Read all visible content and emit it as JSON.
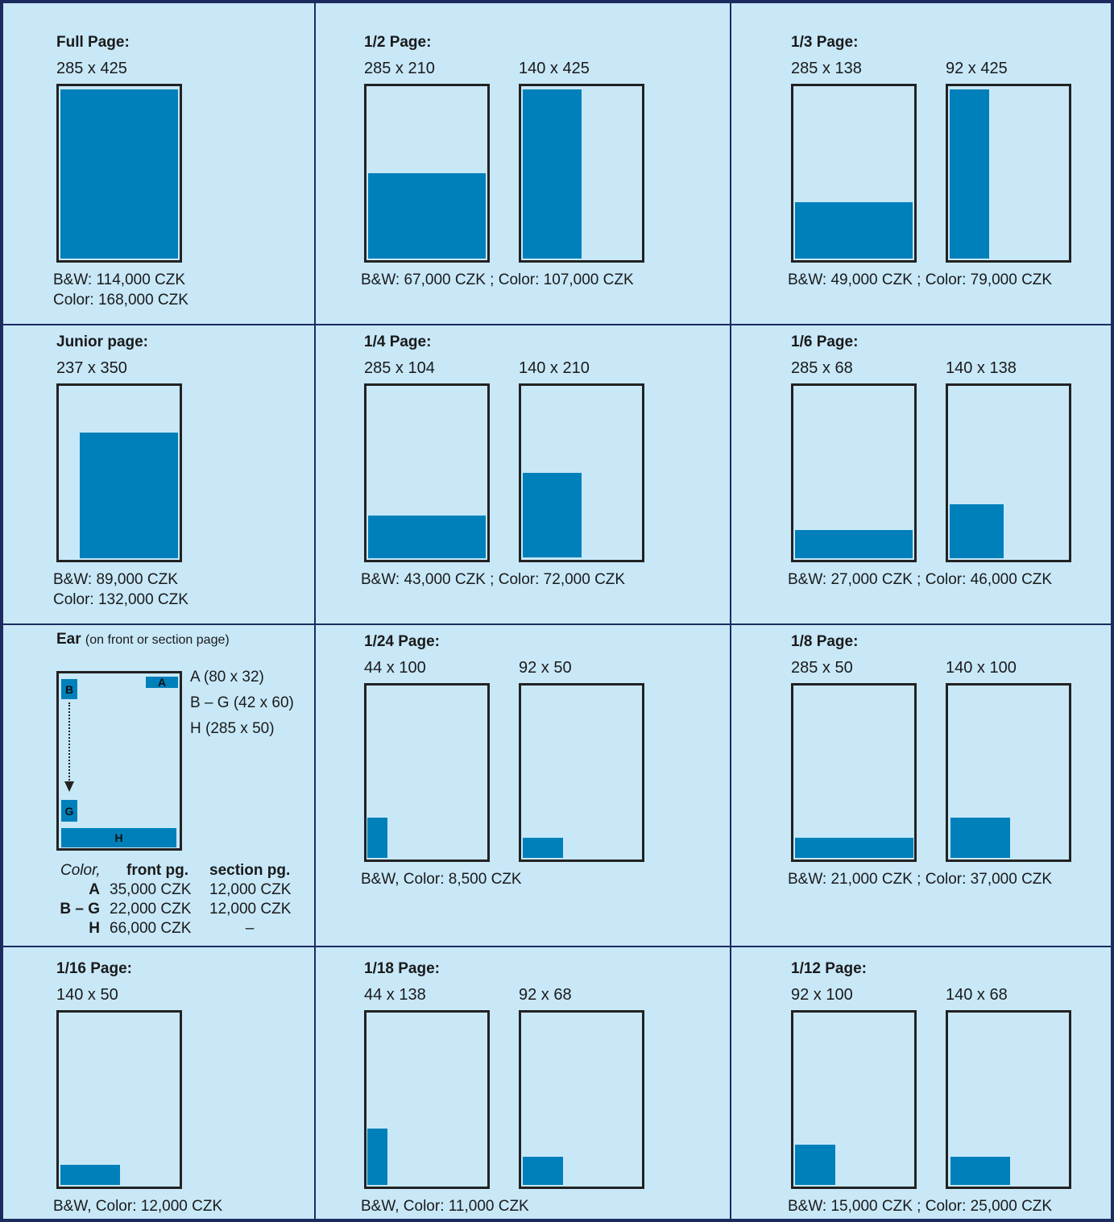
{
  "cells": [
    {
      "title": "Full Page:",
      "sizes": [
        "285 x 425"
      ],
      "prices": [
        "B&W: 114,000 CZK",
        "Color: 168,000 CZK"
      ]
    },
    {
      "title": "1/2 Page:",
      "sizes": [
        "285 x 210",
        "140 x 425"
      ],
      "prices": [
        "B&W: 67,000 CZK ; Color: 107,000 CZK"
      ]
    },
    {
      "title": "1/3 Page:",
      "sizes": [
        "285 x 138",
        "92 x 425"
      ],
      "prices": [
        "B&W: 49,000 CZK ; Color: 79,000 CZK"
      ]
    },
    {
      "title": "Junior page:",
      "sizes": [
        "237 x 350"
      ],
      "prices": [
        "B&W: 89,000 CZK",
        "Color: 132,000 CZK"
      ]
    },
    {
      "title": "1/4 Page:",
      "sizes": [
        "285 x 104",
        "140 x 210"
      ],
      "prices": [
        "B&W: 43,000 CZK ; Color: 72,000 CZK"
      ]
    },
    {
      "title": "1/6 Page:",
      "sizes": [
        "285 x 68",
        "140 x 138"
      ],
      "prices": [
        "B&W: 27,000 CZK ; Color: 46,000 CZK"
      ]
    },
    {
      "title": "1/24 Page:",
      "sizes": [
        "44 x 100",
        "92 x 50"
      ],
      "prices": [
        "B&W, Color: 8,500 CZK"
      ]
    },
    {
      "title": "1/8 Page:",
      "sizes": [
        "285 x 50",
        "140 x 100"
      ],
      "prices": [
        "B&W: 21,000 CZK ; Color: 37,000 CZK"
      ]
    },
    {
      "title": "1/16 Page:",
      "sizes": [
        "140 x 50"
      ],
      "prices": [
        "B&W, Color: 12,000 CZK"
      ]
    },
    {
      "title": "1/18 Page:",
      "sizes": [
        "44 x 138",
        "92 x 68"
      ],
      "prices": [
        "B&W, Color: 11,000 CZK"
      ]
    },
    {
      "title": "1/12 Page:",
      "sizes": [
        "92 x 100",
        "140 x 68"
      ],
      "prices": [
        "B&W: 15,000 CZK ; Color: 25,000 CZK"
      ]
    }
  ],
  "ear": {
    "title": "Ear",
    "subtitle": "(on front or section page)",
    "legend": [
      "A (80 x 32)",
      "B – G (42 x 60)",
      "H (285 x 50)"
    ],
    "box_labels": [
      "A",
      "B",
      "G",
      "H"
    ],
    "table_header": [
      "Color,",
      "front pg.",
      "section pg."
    ],
    "table_rows": [
      [
        "A",
        "35,000 CZK",
        "12,000 CZK"
      ],
      [
        "B – G",
        "22,000 CZK",
        "12,000 CZK"
      ],
      [
        "H",
        "66,000 CZK",
        "–"
      ]
    ]
  }
}
